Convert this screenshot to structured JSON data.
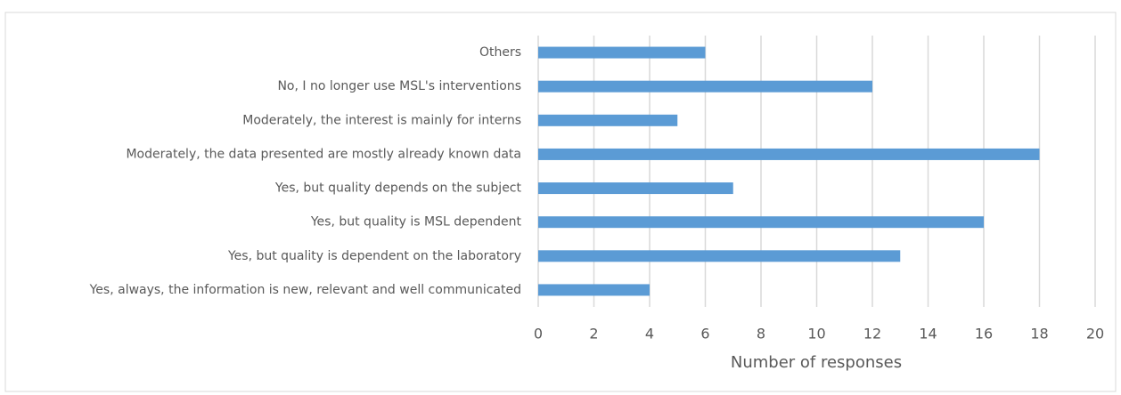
{
  "chart_data": {
    "type": "bar",
    "orientation": "horizontal",
    "categories": [
      "Others",
      "No, I no longer use MSL's interventions",
      "Moderately, the interest is mainly for interns",
      "Moderately, the data presented are mostly already known data",
      "Yes, but quality depends on the subject",
      "Yes, but quality is MSL dependent",
      "Yes, but quality is dependent on the laboratory",
      "Yes, always, the information is new, relevant and well communicated"
    ],
    "values": [
      6,
      12,
      5,
      18,
      7,
      16,
      13,
      4
    ],
    "color": "#5b9bd5",
    "xlabel": "Number of responses",
    "xlim": [
      0,
      20
    ],
    "xticks": [
      0,
      2,
      4,
      6,
      8,
      10,
      12,
      14,
      16,
      18,
      20
    ],
    "grid": true
  }
}
